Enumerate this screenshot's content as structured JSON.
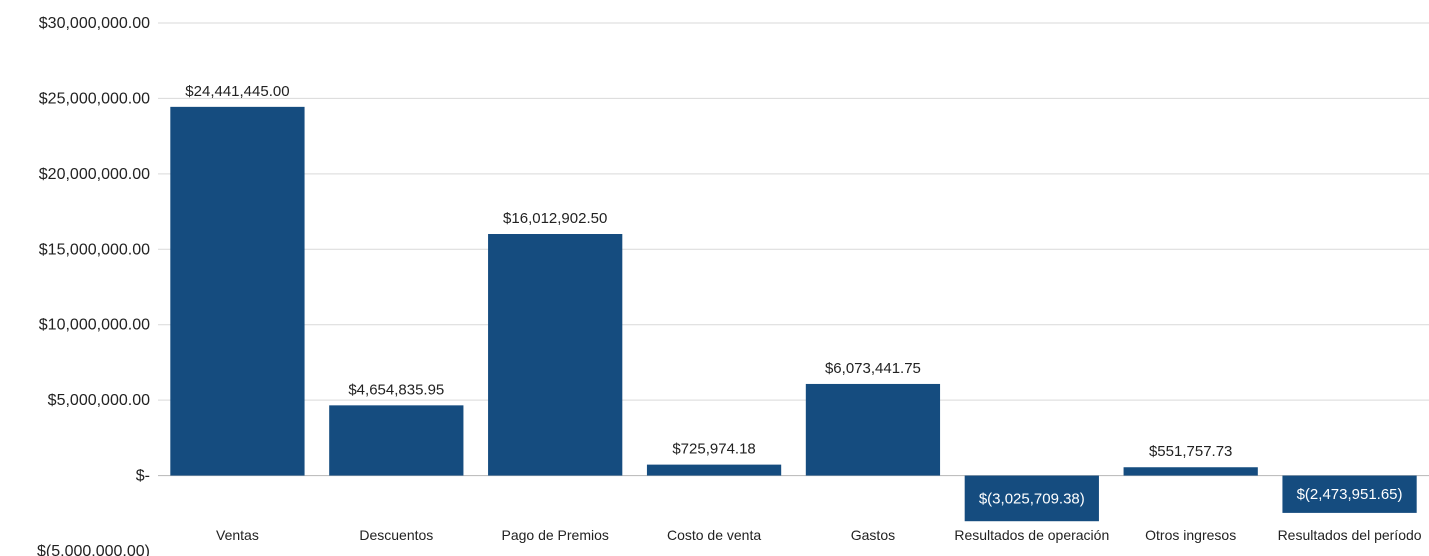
{
  "chart_data": {
    "type": "bar",
    "title": "",
    "xlabel": "",
    "ylabel": "",
    "categories": [
      "Ventas",
      "Descuentos",
      "Pago de Premios",
      "Costo de venta",
      "Gastos",
      "Resultados de operación",
      "Otros ingresos",
      "Resultados del período"
    ],
    "values": [
      24441445.0,
      4654835.95,
      16012902.5,
      725974.18,
      6073441.75,
      -3025709.38,
      551757.73,
      -2473951.65
    ],
    "data_labels": [
      "$24,441,445.00",
      "$4,654,835.95",
      "$16,012,902.50",
      "$725,974.18",
      "$6,073,441.75",
      "$(3,025,709.38)",
      "$551,757.73",
      "$(2,473,951.65)"
    ],
    "ylim": [
      -5000000,
      30000000
    ],
    "yticks": [
      30000000,
      25000000,
      20000000,
      15000000,
      10000000,
      5000000,
      0,
      -5000000
    ],
    "ytick_labels": [
      "$30,000,000.00",
      "$25,000,000.00",
      "$20,000,000.00",
      "$15,000,000.00",
      "$10,000,000.00",
      "$5,000,000.00",
      "$-",
      "$(5,000,000.00)"
    ],
    "grid": true,
    "legend": "none",
    "bar_color": "#154c7f",
    "negative_label_position": "inside"
  }
}
